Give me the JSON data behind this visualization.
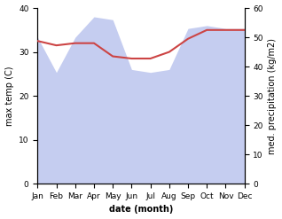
{
  "months": [
    "Jan",
    "Feb",
    "Mar",
    "Apr",
    "May",
    "Jun",
    "Jul",
    "Aug",
    "Sep",
    "Oct",
    "Nov",
    "Dec"
  ],
  "month_indices": [
    0,
    1,
    2,
    3,
    4,
    5,
    6,
    7,
    8,
    9,
    10,
    11
  ],
  "max_temp": [
    32.5,
    31.5,
    32.0,
    32.0,
    29.0,
    28.5,
    28.5,
    30.0,
    33.0,
    35.0,
    35.0,
    35.0
  ],
  "precipitation": [
    50,
    38,
    50,
    57,
    56,
    39,
    38,
    39,
    53,
    54,
    53,
    53
  ],
  "temp_color": "#cc4444",
  "precip_fill_color": "#c5cdf0",
  "xlabel": "date (month)",
  "ylabel_left": "max temp (C)",
  "ylabel_right": "med. precipitation (kg/m2)",
  "ylim_left": [
    0,
    40
  ],
  "ylim_right": [
    0,
    60
  ],
  "yticks_left": [
    0,
    10,
    20,
    30,
    40
  ],
  "yticks_right": [
    0,
    10,
    20,
    30,
    40,
    50,
    60
  ],
  "background_color": "#ffffff",
  "fig_width": 3.18,
  "fig_height": 2.47,
  "dpi": 100
}
